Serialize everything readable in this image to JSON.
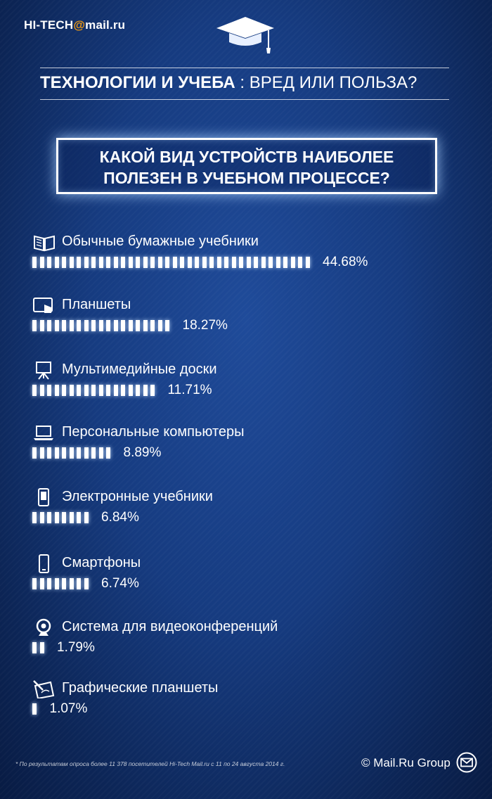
{
  "header": {
    "logo_prefix": "HI-TECH",
    "logo_at": "@",
    "logo_suffix": "mail.ru"
  },
  "title": {
    "strong": "ТЕХНОЛОГИИ И УЧЕБА",
    "rest": " : ВРЕД ИЛИ ПОЛЬЗА?"
  },
  "question": {
    "line1": "КАКОЙ ВИД УСТРОЙСТВ НАИБОЛЕЕ",
    "line2": "ПОЛЕЗЕН В УЧЕБНОМ ПРОЦЕССЕ?"
  },
  "chart_data": {
    "type": "bar",
    "orientation": "horizontal",
    "categories": [
      "Обычные бумажные учебники",
      "Планшеты",
      "Мультимедийные доски",
      "Персональные компьютеры",
      "Электронные учебники",
      "Смартфоны",
      "Система для видеоконференций",
      "Графические планшеты"
    ],
    "values": [
      44.68,
      18.27,
      11.71,
      8.89,
      6.84,
      6.74,
      1.79,
      1.07
    ],
    "value_labels": [
      "44.68%",
      "18.27%",
      "11.71%",
      "8.89%",
      "6.84%",
      "6.74%",
      "1.79%",
      "1.07%"
    ],
    "segment_counts": [
      38,
      19,
      17,
      11,
      8,
      8,
      2,
      1
    ],
    "icons": [
      "book-icon",
      "tablet-icon",
      "whiteboard-icon",
      "laptop-icon",
      "ereader-icon",
      "smartphone-icon",
      "webcam-icon",
      "graphics-tablet-icon"
    ],
    "unit": "%"
  },
  "footer": {
    "note": "* По результатам опроса более 11 378 посетителей Hi-Tech Mail.ru с 11 по 24 августа 2014 г.",
    "brand": "© Mail.Ru Group",
    "mail_icon": "envelope-icon"
  },
  "colors": {
    "background": "#163b80",
    "accent": "#f39c12",
    "bar": "#ffffff"
  }
}
